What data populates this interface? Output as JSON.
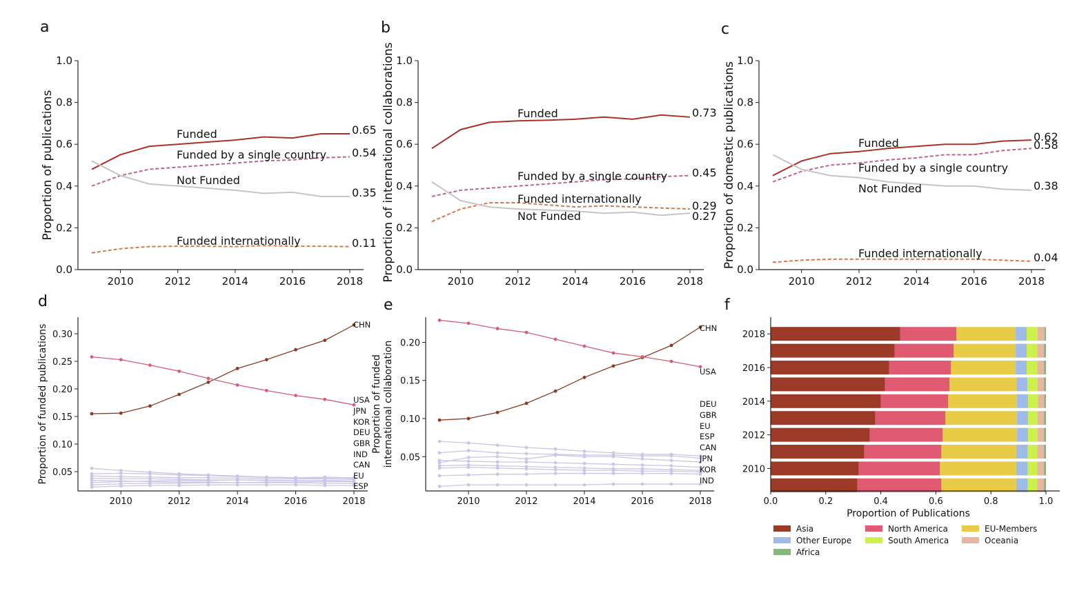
{
  "chart_data": [
    {
      "panel": "a",
      "type": "line",
      "ylabel": "Proportion of publications",
      "xlabel": "",
      "ylim": [
        0,
        1.0
      ],
      "xlim": [
        2009,
        2018
      ],
      "yticks": [
        0.0,
        0.2,
        0.4,
        0.6,
        0.8,
        1.0
      ],
      "xticks": [
        2010,
        2012,
        2014,
        2016,
        2018
      ],
      "x": [
        2009,
        2010,
        2011,
        2012,
        2013,
        2014,
        2015,
        2016,
        2017,
        2018
      ],
      "series": [
        {
          "name": "Funded",
          "end_label": "0.65",
          "style": "solid",
          "color": "#a83228",
          "values": [
            0.48,
            0.55,
            0.59,
            0.6,
            0.61,
            0.62,
            0.635,
            0.63,
            0.65,
            0.65
          ]
        },
        {
          "name": "Funded by a single country",
          "end_label": "0.54",
          "style": "dashed",
          "color": "#c26482",
          "values": [
            0.4,
            0.45,
            0.48,
            0.49,
            0.5,
            0.51,
            0.52,
            0.525,
            0.535,
            0.54
          ]
        },
        {
          "name": "Not Funded",
          "end_label": "0.35",
          "style": "solid",
          "color": "#c8c4c4",
          "values": [
            0.52,
            0.45,
            0.41,
            0.4,
            0.39,
            0.38,
            0.365,
            0.37,
            0.35,
            0.35
          ]
        },
        {
          "name": "Funded internationally",
          "end_label": "0.11",
          "style": "dashed",
          "color": "#db7748",
          "values": [
            0.08,
            0.1,
            0.11,
            0.112,
            0.112,
            0.11,
            0.115,
            0.112,
            0.112,
            0.11
          ]
        }
      ]
    },
    {
      "panel": "b",
      "type": "line",
      "ylabel": "Proportion of international collaborations",
      "xlabel": "",
      "ylim": [
        0,
        1.0
      ],
      "xlim": [
        2009,
        2018
      ],
      "yticks": [
        0.0,
        0.2,
        0.4,
        0.6,
        0.8,
        1.0
      ],
      "xticks": [
        2010,
        2012,
        2014,
        2016,
        2018
      ],
      "x": [
        2009,
        2010,
        2011,
        2012,
        2013,
        2014,
        2015,
        2016,
        2017,
        2018
      ],
      "series": [
        {
          "name": "Funded",
          "end_label": "0.73",
          "style": "solid",
          "color": "#a83228",
          "values": [
            0.58,
            0.67,
            0.705,
            0.712,
            0.715,
            0.72,
            0.73,
            0.72,
            0.74,
            0.73
          ]
        },
        {
          "name": "Funded by a single country",
          "end_label": "0.45",
          "style": "dashed",
          "color": "#c26482",
          "values": [
            0.35,
            0.38,
            0.39,
            0.4,
            0.41,
            0.42,
            0.43,
            0.435,
            0.445,
            0.45
          ]
        },
        {
          "name": "Funded internationally",
          "end_label": "0.29",
          "style": "dashed",
          "color": "#db7748",
          "values": [
            0.23,
            0.29,
            0.32,
            0.32,
            0.31,
            0.3,
            0.305,
            0.3,
            0.295,
            0.29
          ]
        },
        {
          "name": "Not Funded",
          "end_label": "0.27",
          "style": "solid",
          "color": "#c8c4c4",
          "values": [
            0.42,
            0.33,
            0.3,
            0.29,
            0.285,
            0.28,
            0.27,
            0.275,
            0.26,
            0.27
          ]
        }
      ]
    },
    {
      "panel": "c",
      "type": "line",
      "ylabel": "Proportion of domestic publications",
      "xlabel": "",
      "ylim": [
        0,
        1.0
      ],
      "xlim": [
        2009,
        2018
      ],
      "yticks": [
        0.0,
        0.2,
        0.4,
        0.6,
        0.8,
        1.0
      ],
      "xticks": [
        2010,
        2012,
        2014,
        2016,
        2018
      ],
      "x": [
        2009,
        2010,
        2011,
        2012,
        2013,
        2014,
        2015,
        2016,
        2017,
        2018
      ],
      "series": [
        {
          "name": "Funded",
          "end_label": "0.62",
          "style": "solid",
          "color": "#a83228",
          "values": [
            0.45,
            0.52,
            0.555,
            0.565,
            0.58,
            0.59,
            0.6,
            0.6,
            0.615,
            0.62
          ]
        },
        {
          "name": "Funded by a single country",
          "end_label": "0.58",
          "style": "dashed",
          "color": "#c26482",
          "values": [
            0.42,
            0.47,
            0.5,
            0.51,
            0.525,
            0.535,
            0.55,
            0.55,
            0.57,
            0.58
          ]
        },
        {
          "name": "Not Funded",
          "end_label": "0.38",
          "style": "solid",
          "color": "#c8c4c4",
          "values": [
            0.55,
            0.48,
            0.45,
            0.44,
            0.42,
            0.41,
            0.4,
            0.4,
            0.385,
            0.38
          ]
        },
        {
          "name": "Funded internationally",
          "end_label": "0.04",
          "style": "dashed",
          "color": "#db7748",
          "values": [
            0.035,
            0.045,
            0.05,
            0.05,
            0.05,
            0.05,
            0.05,
            0.05,
            0.045,
            0.04
          ]
        }
      ]
    },
    {
      "panel": "d",
      "type": "line",
      "ylabel": "Proportion of funded publications",
      "xlabel": "",
      "ylim": [
        0.015,
        0.33
      ],
      "xlim": [
        2009,
        2018
      ],
      "yticks": [
        0.05,
        0.1,
        0.15,
        0.2,
        0.25,
        0.3
      ],
      "ytick_labels": [
        "0.05",
        "0.10",
        "0.15",
        "0.20",
        "0.25",
        "0.30"
      ],
      "xticks": [
        2010,
        2012,
        2014,
        2016,
        2018
      ],
      "x": [
        2009,
        2010,
        2011,
        2012,
        2013,
        2014,
        2015,
        2016,
        2017,
        2018
      ],
      "series": [
        {
          "name": "CHN",
          "color": "#8b3a22",
          "values": [
            0.155,
            0.156,
            0.169,
            0.19,
            0.212,
            0.237,
            0.253,
            0.271,
            0.288,
            0.316
          ]
        },
        {
          "name": "USA",
          "color": "#d45d78",
          "values": [
            0.258,
            0.253,
            0.243,
            0.232,
            0.219,
            0.207,
            0.197,
            0.188,
            0.181,
            0.171
          ]
        },
        {
          "name": "JPN",
          "color": "#c9c6e6",
          "values": [
            0.056,
            0.052,
            0.049,
            0.046,
            0.044,
            0.042,
            0.04,
            0.039,
            0.038,
            0.037
          ]
        },
        {
          "name": "KOR",
          "color": "#c9c6e6",
          "values": [
            0.046,
            0.047,
            0.046,
            0.044,
            0.043,
            0.041,
            0.04,
            0.039,
            0.04,
            0.039
          ]
        },
        {
          "name": "DEU",
          "color": "#c9c6e6",
          "values": [
            0.042,
            0.041,
            0.04,
            0.039,
            0.039,
            0.038,
            0.038,
            0.037,
            0.037,
            0.036
          ]
        },
        {
          "name": "GBR",
          "color": "#c9c6e6",
          "values": [
            0.038,
            0.037,
            0.037,
            0.036,
            0.035,
            0.035,
            0.034,
            0.034,
            0.034,
            0.033
          ]
        },
        {
          "name": "IND",
          "color": "#c9c6e6",
          "values": [
            0.03,
            0.032,
            0.033,
            0.034,
            0.034,
            0.035,
            0.035,
            0.034,
            0.034,
            0.032
          ]
        },
        {
          "name": "CAN",
          "color": "#c9c6e6",
          "values": [
            0.034,
            0.033,
            0.032,
            0.031,
            0.031,
            0.03,
            0.03,
            0.03,
            0.029,
            0.029
          ]
        },
        {
          "name": "EU",
          "color": "#c9c6e6",
          "values": [
            0.026,
            0.028,
            0.029,
            0.029,
            0.03,
            0.03,
            0.031,
            0.031,
            0.032,
            0.032
          ]
        },
        {
          "name": "ESP",
          "color": "#c9c6e6",
          "values": [
            0.022,
            0.024,
            0.025,
            0.025,
            0.026,
            0.026,
            0.026,
            0.026,
            0.025,
            0.025
          ]
        }
      ]
    },
    {
      "panel": "e",
      "type": "line",
      "ylabel": "Proportion of funded\ninternational collaboration",
      "xlabel": "",
      "ylim": [
        0.005,
        0.233
      ],
      "xlim": [
        2009,
        2018
      ],
      "yticks": [
        0.05,
        0.1,
        0.15,
        0.2
      ],
      "ytick_labels": [
        "0.05",
        "0.10",
        "0.15",
        "0.20"
      ],
      "xticks": [
        2010,
        2012,
        2014,
        2016,
        2018
      ],
      "x": [
        2009,
        2010,
        2011,
        2012,
        2013,
        2014,
        2015,
        2016,
        2017,
        2018
      ],
      "series": [
        {
          "name": "CHN",
          "color": "#8b3a22",
          "values": [
            0.098,
            0.1,
            0.108,
            0.12,
            0.136,
            0.154,
            0.169,
            0.18,
            0.196,
            0.22
          ]
        },
        {
          "name": "USA",
          "color": "#d45d78",
          "values": [
            0.229,
            0.225,
            0.218,
            0.213,
            0.204,
            0.195,
            0.186,
            0.181,
            0.175,
            0.168
          ]
        },
        {
          "name": "DEU",
          "color": "#c9c6e6",
          "values": [
            0.07,
            0.068,
            0.065,
            0.062,
            0.06,
            0.057,
            0.055,
            0.053,
            0.053,
            0.051
          ]
        },
        {
          "name": "GBR",
          "color": "#c9c6e6",
          "values": [
            0.055,
            0.058,
            0.055,
            0.054,
            0.053,
            0.052,
            0.052,
            0.051,
            0.051,
            0.048
          ]
        },
        {
          "name": "EU",
          "color": "#c9c6e6",
          "values": [
            0.042,
            0.049,
            0.05,
            0.047,
            0.052,
            0.05,
            0.05,
            0.047,
            0.045,
            0.043
          ]
        },
        {
          "name": "ESP",
          "color": "#c9c6e6",
          "values": [
            0.045,
            0.044,
            0.043,
            0.043,
            0.042,
            0.041,
            0.04,
            0.039,
            0.038,
            0.036
          ]
        },
        {
          "name": "CAN",
          "color": "#c9c6e6",
          "values": [
            0.038,
            0.039,
            0.038,
            0.037,
            0.036,
            0.035,
            0.034,
            0.034,
            0.033,
            0.032
          ]
        },
        {
          "name": "JPN",
          "color": "#c9c6e6",
          "values": [
            0.035,
            0.036,
            0.035,
            0.034,
            0.033,
            0.032,
            0.032,
            0.031,
            0.031,
            0.03
          ]
        },
        {
          "name": "KOR",
          "color": "#c9c6e6",
          "values": [
            0.025,
            0.026,
            0.027,
            0.027,
            0.028,
            0.028,
            0.028,
            0.028,
            0.028,
            0.027
          ]
        },
        {
          "name": "IND",
          "color": "#c9c6e6",
          "values": [
            0.011,
            0.013,
            0.013,
            0.013,
            0.013,
            0.013,
            0.014,
            0.014,
            0.014,
            0.014
          ]
        }
      ]
    },
    {
      "panel": "f",
      "type": "bar",
      "orientation": "horizontal",
      "stacked": true,
      "xlabel": "Proportion of Publications",
      "ylabel": "",
      "xlim": [
        0,
        1.0
      ],
      "xticks": [
        0.0,
        0.2,
        0.4,
        0.6,
        0.8,
        1.0
      ],
      "categories": [
        2018,
        2017,
        2016,
        2015,
        2014,
        2013,
        2012,
        2011,
        2010,
        2009
      ],
      "ytick_labels": [
        "2018",
        "2016",
        "2014",
        "2012",
        "2010"
      ],
      "series": [
        {
          "name": "Asia",
          "color": "#9b3a27",
          "values": [
            0.47,
            0.45,
            0.43,
            0.415,
            0.4,
            0.38,
            0.36,
            0.34,
            0.32,
            0.315
          ]
        },
        {
          "name": "North America",
          "color": "#e05a72",
          "values": [
            0.205,
            0.215,
            0.225,
            0.235,
            0.245,
            0.255,
            0.265,
            0.28,
            0.295,
            0.305
          ]
        },
        {
          "name": "EU-Members",
          "color": "#e8cc47",
          "values": [
            0.215,
            0.225,
            0.235,
            0.243,
            0.25,
            0.26,
            0.27,
            0.272,
            0.277,
            0.272
          ]
        },
        {
          "name": "Other Europe",
          "color": "#9fbbea",
          "values": [
            0.04,
            0.04,
            0.04,
            0.04,
            0.04,
            0.04,
            0.04,
            0.042,
            0.042,
            0.042
          ]
        },
        {
          "name": "South America",
          "color": "#cdf14c",
          "values": [
            0.04,
            0.038,
            0.038,
            0.036,
            0.036,
            0.034,
            0.034,
            0.034,
            0.034,
            0.034
          ]
        },
        {
          "name": "Oceania",
          "color": "#e8b5a2",
          "values": [
            0.025,
            0.024,
            0.024,
            0.023,
            0.022,
            0.023,
            0.023,
            0.024,
            0.024,
            0.024
          ]
        },
        {
          "name": "Africa",
          "color": "#86b87e",
          "values": [
            0.005,
            0.008,
            0.008,
            0.008,
            0.007,
            0.008,
            0.008,
            0.008,
            0.008,
            0.008
          ]
        }
      ],
      "legend": [
        "Asia",
        "North America",
        "EU-Members",
        "Other Europe",
        "South America",
        "Oceania",
        "Africa"
      ]
    }
  ]
}
